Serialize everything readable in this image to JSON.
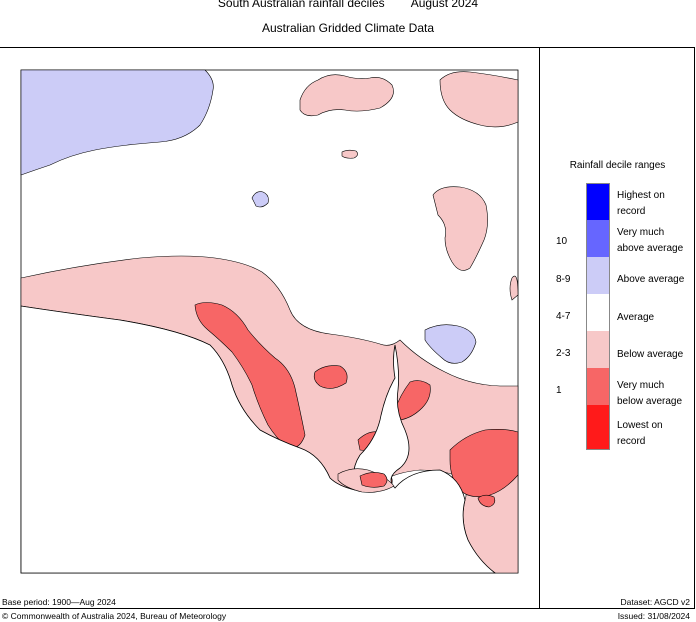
{
  "header": {
    "title": "South Australian rainfall deciles",
    "period": "August 2024",
    "subtitle": "Australian Gridded Climate Data"
  },
  "legend": {
    "title": "Rainfall decile ranges",
    "categories": [
      {
        "label_line1": "Highest on",
        "label_line2": "record",
        "range": "",
        "color": "#0000ff"
      },
      {
        "label_line1": "Very much",
        "label_line2": "above average",
        "range": "10",
        "color": "#6666ff"
      },
      {
        "label_line1": "Above average",
        "label_line2": "",
        "range": "8-9",
        "color": "#ccccf7"
      },
      {
        "label_line1": "Average",
        "label_line2": "",
        "range": "4-7",
        "color": "#ffffff"
      },
      {
        "label_line1": "Below average",
        "label_line2": "",
        "range": "2-3",
        "color": "#f7c8c8"
      },
      {
        "label_line1": "Very much",
        "label_line2": "below average",
        "range": "1",
        "color": "#f76666"
      },
      {
        "label_line1": "Lowest on",
        "label_line2": "record",
        "range": "",
        "color": "#ff1a1a"
      }
    ]
  },
  "footer": {
    "base_period": "Base period: 1900—Aug 2024",
    "dataset": "Dataset: AGCD v2",
    "copyright": "© Commonwealth of Australia 2024, Bureau of Meteorology",
    "issued": "Issued: 31/08/2024"
  }
}
